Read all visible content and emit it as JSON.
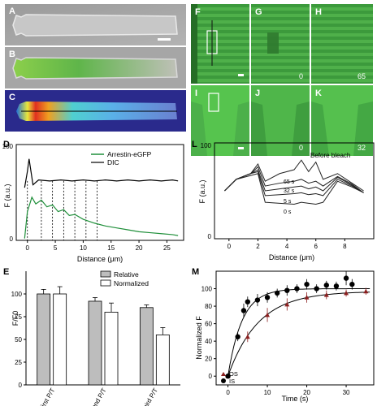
{
  "panel_letters": {
    "A": "A",
    "B": "B",
    "C": "C",
    "D": "D",
    "E": "E",
    "F": "F",
    "G": "G",
    "H": "H",
    "I": "I",
    "J": "J",
    "K": "K",
    "L": "L",
    "M": "M"
  },
  "time_labels": {
    "G": "0",
    "H": "65",
    "J": "0",
    "K": "32"
  },
  "colors": {
    "green": "#3fa64a",
    "bright_green": "#5ecb4c",
    "dark_green": "#1f7a2a",
    "red_marker": "#8b1f1f"
  },
  "panel_D": {
    "ylabel": "F (a.u.)",
    "xlabel": "Distance (μm)",
    "xticks": [
      "0",
      "5",
      "10",
      "15",
      "20",
      "25"
    ],
    "ytick_top": "100",
    "ytick_bottom": "0",
    "legend": [
      "Arrestin-eGFP",
      "DIC"
    ]
  },
  "panel_L": {
    "ylabel": "F (a.u.)",
    "xlabel": "Distance (μm)",
    "xticks": [
      "0",
      "2",
      "4",
      "6",
      "8"
    ],
    "ytick_top": "100",
    "ytick_bottom": "0",
    "annotations": [
      "Before bleach",
      "65 s",
      "32 s",
      "5 s",
      "0 s"
    ]
  },
  "panel_E": {
    "ylabel": "F/F0",
    "yticks": [
      "0",
      "25",
      "50",
      "75",
      "100"
    ],
    "categories": [
      "First P/T",
      "Second P/T",
      "Third P/T"
    ],
    "legend": [
      "Relative",
      "Normalized"
    ]
  },
  "panel_M": {
    "ylabel": "Normalized F",
    "xlabel": "Time (s)",
    "xticks": [
      "0",
      "10",
      "20",
      "30"
    ],
    "yticks": [
      "0",
      "20",
      "40",
      "60",
      "80",
      "100"
    ],
    "legend": [
      "OS",
      "IS"
    ]
  },
  "chart_data": [
    {
      "type": "line",
      "panel": "D",
      "xlabel": "Distance (μm)",
      "ylabel": "F (a.u.)",
      "xlim": [
        -2,
        28
      ],
      "series": [
        {
          "name": "Arrestin-eGFP",
          "x": [
            -0.5,
            0,
            0.8,
            1.5,
            2.5,
            3.5,
            4.5,
            5.5,
            6.5,
            7.5,
            8.5,
            10,
            12,
            14,
            16,
            18,
            20,
            22,
            24,
            26,
            27
          ],
          "y": [
            2,
            30,
            45,
            38,
            42,
            35,
            37,
            30,
            32,
            26,
            27,
            22,
            18,
            15,
            13,
            11,
            9,
            8,
            7,
            6,
            5
          ]
        },
        {
          "name": "DIC",
          "x": [
            -0.5,
            0,
            0.3,
            1,
            2,
            4,
            6,
            8,
            10,
            12,
            14,
            16,
            18,
            20,
            22,
            24,
            26,
            27
          ],
          "y": [
            55,
            72,
            85,
            58,
            63,
            62,
            63,
            62,
            63,
            62,
            63,
            62,
            63,
            62,
            63,
            62,
            63,
            62
          ]
        }
      ]
    },
    {
      "type": "bar",
      "panel": "E",
      "ylabel": "F/F0",
      "ylim": [
        0,
        125
      ],
      "categories": [
        "First P/T",
        "Second P/T",
        "Third P/T"
      ],
      "series": [
        {
          "name": "Relative",
          "values": [
            100,
            92,
            85
          ],
          "errors": [
            5,
            4,
            3
          ]
        },
        {
          "name": "Normalized",
          "values": [
            100,
            80,
            55
          ],
          "errors": [
            8,
            10,
            8
          ]
        }
      ]
    },
    {
      "type": "line",
      "panel": "L",
      "xlabel": "Distance (μm)",
      "ylabel": "F (a.u.)",
      "xlim": [
        -1,
        10
      ],
      "series": [
        {
          "name": "Before bleach",
          "x": [
            -0.3,
            0.5,
            1.5,
            2,
            2.5,
            3.5,
            4.5,
            5,
            5.5,
            6,
            6.5,
            7.5,
            8.5,
            9.3
          ],
          "y": [
            50,
            62,
            68,
            78,
            60,
            68,
            72,
            82,
            70,
            80,
            62,
            68,
            58,
            50
          ]
        },
        {
          "name": "65 s",
          "x": [
            -0.3,
            0.5,
            1.5,
            2,
            2.5,
            3.5,
            4.5,
            5,
            5.5,
            6,
            6.5,
            7.5,
            8.5,
            9.3
          ],
          "y": [
            50,
            62,
            68,
            75,
            55,
            58,
            60,
            62,
            58,
            60,
            55,
            65,
            57,
            48
          ]
        },
        {
          "name": "32 s",
          "x": [
            -0.3,
            0.5,
            1.5,
            2,
            2.5,
            3.5,
            4.5,
            5,
            5.5,
            6,
            6.5,
            7.5,
            8.5,
            9.3
          ],
          "y": [
            50,
            62,
            68,
            72,
            50,
            52,
            54,
            55,
            52,
            54,
            50,
            64,
            56,
            48
          ]
        },
        {
          "name": "5 s",
          "x": [
            -0.3,
            0.5,
            1.5,
            2,
            2.5,
            3.5,
            4.5,
            5,
            5.5,
            6,
            6.5,
            7.5,
            8.5,
            9.3
          ],
          "y": [
            50,
            62,
            68,
            70,
            45,
            46,
            47,
            48,
            46,
            47,
            45,
            62,
            55,
            48
          ]
        },
        {
          "name": "0 s",
          "x": [
            -0.3,
            0.5,
            1.5,
            2,
            2.5,
            3.5,
            4.5,
            5,
            5.5,
            6,
            6.5,
            7.5,
            8.5,
            9.3
          ],
          "y": [
            50,
            62,
            66,
            68,
            38,
            37,
            36,
            38,
            37,
            36,
            38,
            60,
            54,
            48
          ]
        }
      ]
    },
    {
      "type": "scatter",
      "panel": "M",
      "xlabel": "Time (s)",
      "ylabel": "Normalized F",
      "xlim": [
        -3,
        37
      ],
      "ylim": [
        -10,
        120
      ],
      "series": [
        {
          "name": "OS",
          "x": [
            0,
            5,
            10,
            15,
            20,
            25,
            30,
            35
          ],
          "y": [
            0,
            45,
            70,
            82,
            90,
            93,
            95,
            97
          ],
          "errors": [
            2,
            6,
            8,
            7,
            6,
            5,
            4,
            4
          ]
        },
        {
          "name": "IS",
          "x": [
            0,
            2.5,
            4,
            5,
            7.5,
            10,
            12.5,
            15,
            17.5,
            20,
            22.5,
            25,
            27.5,
            30,
            31.5
          ],
          "y": [
            0,
            45,
            75,
            85,
            87,
            90,
            95,
            98,
            100,
            105,
            100,
            104,
            103,
            112,
            105
          ],
          "errors": [
            2,
            5,
            8,
            6,
            7,
            6,
            5,
            6,
            5,
            6,
            5,
            5,
            5,
            8,
            6
          ]
        }
      ]
    }
  ]
}
